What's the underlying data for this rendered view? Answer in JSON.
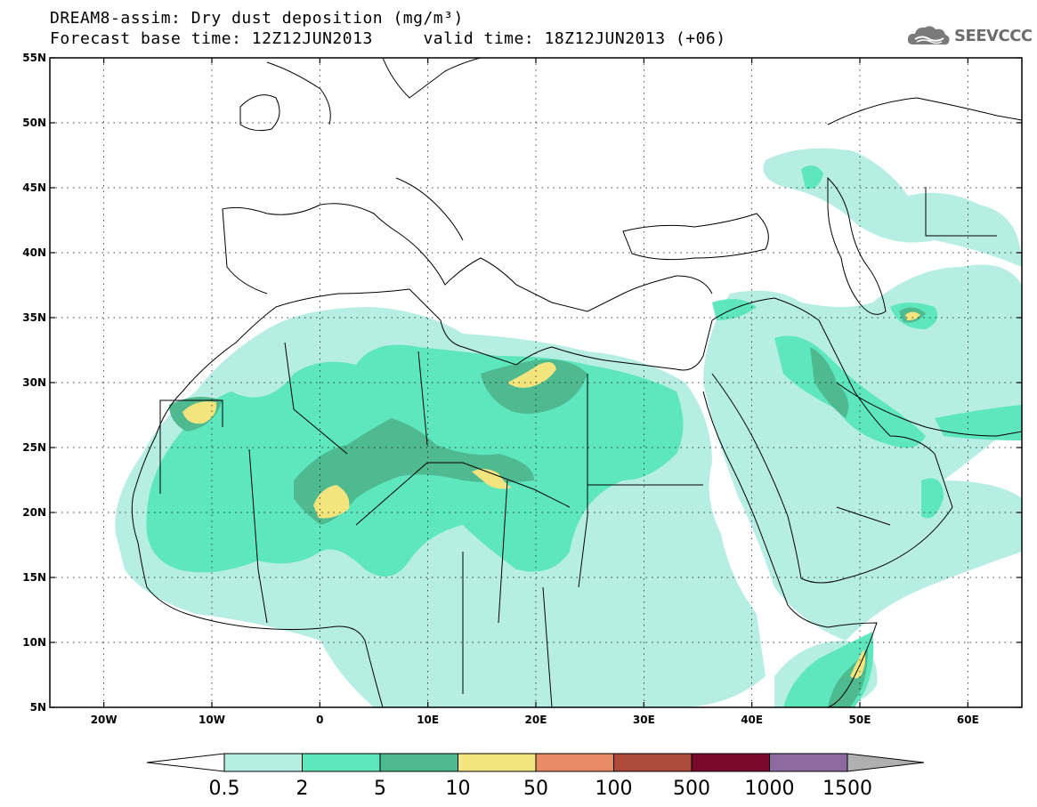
{
  "title": {
    "line1": "DREAM8-assim: Dry dust deposition (mg/m³)",
    "line2_left": "Forecast base time: 12Z12JUN2013",
    "line2_right": "valid time: 18Z12JUN2013 (+06)"
  },
  "logo": {
    "text": "SEEVCCC",
    "icon": "cloud-icon"
  },
  "map": {
    "lon_range": [
      -25,
      65
    ],
    "lat_range": [
      5,
      55
    ],
    "lat_ticks": [
      "55N",
      "50N",
      "45N",
      "40N",
      "35N",
      "30N",
      "25N",
      "20N",
      "15N",
      "10N",
      "5N"
    ],
    "lon_ticks": [
      "20W",
      "10W",
      "0",
      "10E",
      "20E",
      "30E",
      "40E",
      "50E",
      "60E"
    ],
    "grid": "dotted"
  },
  "colorbar": {
    "labels": [
      "0.5",
      "2",
      "5",
      "10",
      "50",
      "100",
      "500",
      "1000",
      "1500"
    ],
    "colors": [
      "#b7eee4",
      "#5ee6bd",
      "#4fb98f",
      "#f3e57e",
      "#e98a66",
      "#ac4a3c",
      "#7a0a2c",
      "#8d6aa0"
    ],
    "under_color": "#ffffff",
    "over_color": "#b0b0b0"
  }
}
